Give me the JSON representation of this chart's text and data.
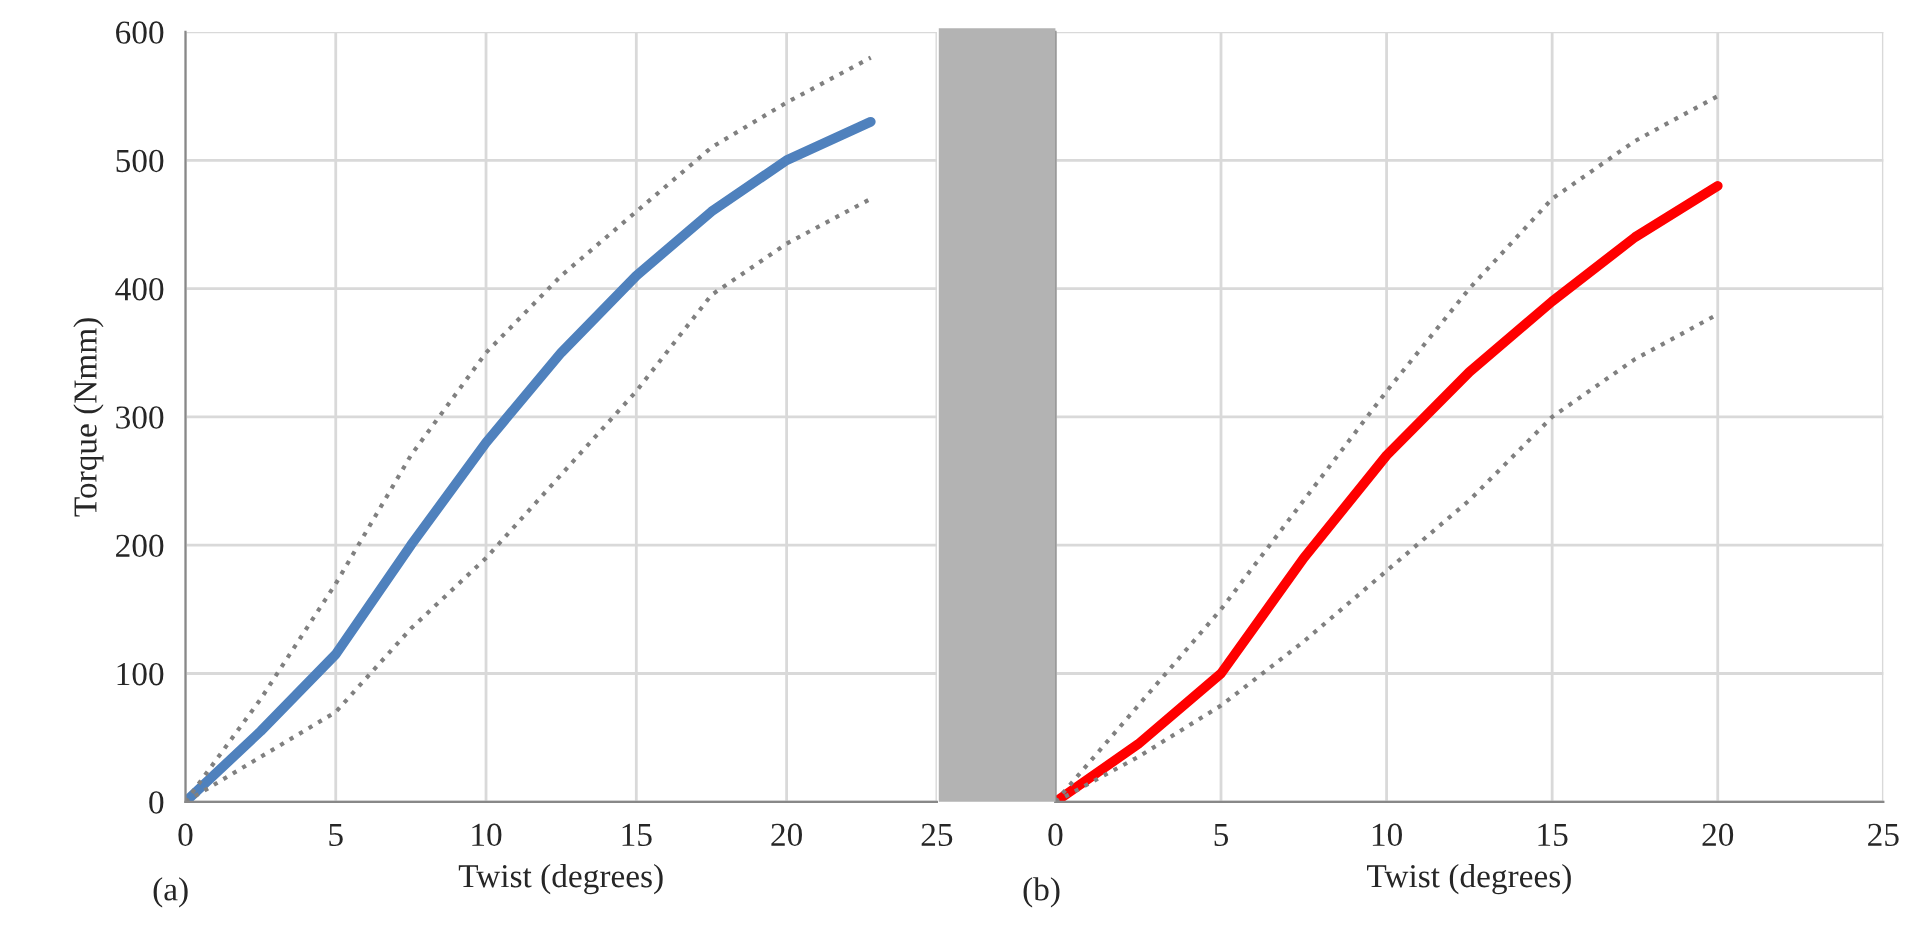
{
  "chart_data": [
    {
      "type": "line",
      "xlabel": "Twist (degrees)",
      "ylabel": "Torque (Nmm)",
      "annotations": [
        "(a)"
      ],
      "x": [
        0,
        2.5,
        5,
        7.5,
        10,
        12.5,
        15,
        17.5,
        20,
        22.8
      ],
      "series": [
        {
          "color": "#4f81bd",
          "line_style": "solid",
          "values": [
            0,
            55,
            115,
            200,
            280,
            350,
            410,
            460,
            500,
            530
          ]
        },
        {
          "color": "#808080",
          "line_style": "dotted",
          "values": [
            0,
            80,
            170,
            270,
            350,
            410,
            460,
            510,
            545,
            580
          ]
        },
        {
          "color": "#808080",
          "line_style": "dotted",
          "values": [
            0,
            35,
            70,
            135,
            190,
            255,
            320,
            395,
            435,
            470
          ]
        }
      ],
      "xlim": [
        0,
        25
      ],
      "xticks": [
        0,
        5,
        10,
        15,
        20,
        25
      ],
      "ylim": [
        0,
        600
      ],
      "yticks": [
        0,
        100,
        200,
        300,
        400,
        500,
        600
      ],
      "grid": true,
      "marker": "none"
    },
    {
      "type": "line",
      "xlabel": "Twist (degrees)",
      "annotations": [
        "(b)"
      ],
      "x": [
        0,
        2.5,
        5,
        7.5,
        10,
        12.5,
        15,
        17.5,
        20
      ],
      "series": [
        {
          "color": "#ff0000",
          "line_style": "solid",
          "values": [
            0,
            45,
            100,
            190,
            270,
            335,
            390,
            440,
            480
          ]
        },
        {
          "color": "#808080",
          "line_style": "dotted",
          "values": [
            0,
            75,
            150,
            235,
            320,
            400,
            470,
            515,
            550
          ]
        },
        {
          "color": "#808080",
          "line_style": "dotted",
          "values": [
            0,
            35,
            75,
            125,
            180,
            235,
            300,
            345,
            380
          ]
        }
      ],
      "xlim": [
        0,
        25
      ],
      "xticks": [
        0,
        5,
        10,
        15,
        20,
        25
      ],
      "ylim": [
        0,
        600
      ],
      "yticks": [
        0,
        100,
        200,
        300,
        400,
        500,
        600
      ],
      "tick_labels": "x",
      "grid": true,
      "marker": "none"
    }
  ]
}
